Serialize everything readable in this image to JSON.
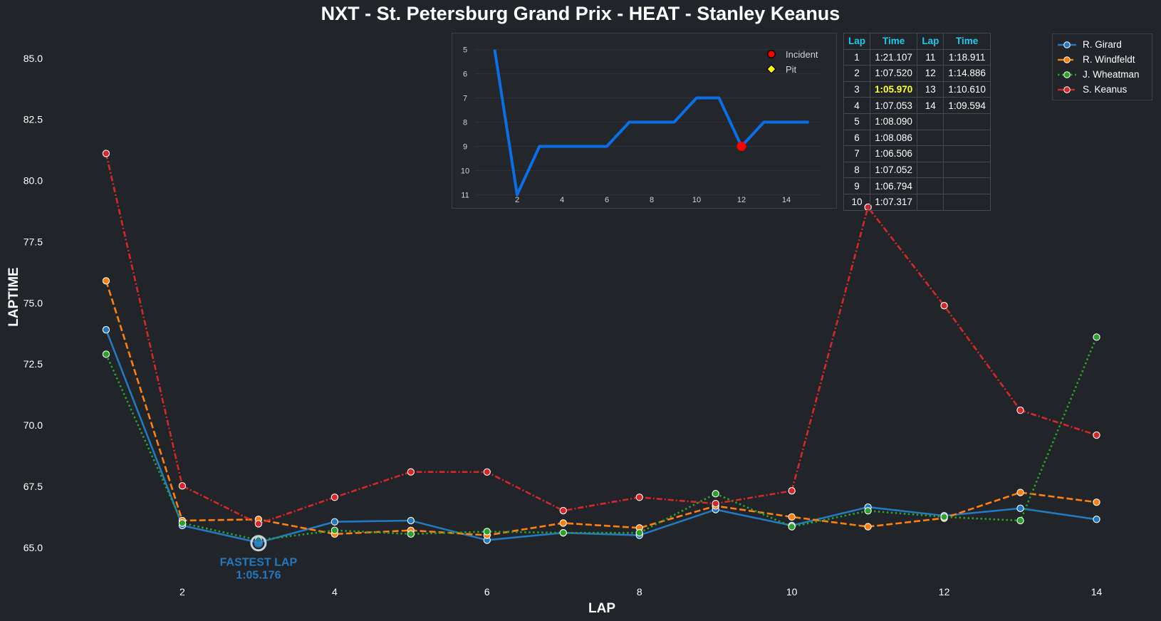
{
  "chart_data": [
    {
      "type": "line",
      "title": "NXT - St. Petersburg Grand Prix - HEAT - Stanley Keanus",
      "xlabel": "LAP",
      "ylabel": "LAPTIME",
      "xlim": [
        0,
        14.5
      ],
      "ylim": [
        63.8,
        86.1
      ],
      "xticks": [
        2,
        4,
        6,
        8,
        10,
        12,
        14
      ],
      "yticks": [
        65.0,
        67.5,
        70.0,
        72.5,
        75.0,
        77.5,
        80.0,
        82.5,
        85.0
      ],
      "legend_position": "top-right",
      "grid": false,
      "series": [
        {
          "name": "R. Girard",
          "color": "#2478c0",
          "dash": "solid",
          "x": [
            1,
            2,
            3,
            4,
            5,
            6,
            7,
            8,
            9,
            10,
            11,
            12,
            13,
            14
          ],
          "y": [
            73.9,
            65.9,
            65.2,
            66.05,
            66.1,
            65.3,
            65.6,
            65.5,
            66.55,
            65.9,
            66.65,
            66.3,
            66.6,
            66.15
          ]
        },
        {
          "name": "R. Windfeldt",
          "color": "#ff7f0e",
          "dash": "dashed",
          "x": [
            1,
            2,
            3,
            4,
            5,
            6,
            7,
            8,
            9,
            10,
            11,
            12,
            13,
            14
          ],
          "y": [
            75.9,
            66.1,
            66.15,
            65.55,
            65.7,
            65.5,
            66.0,
            65.8,
            66.7,
            66.25,
            65.85,
            66.2,
            67.25,
            66.85
          ]
        },
        {
          "name": "J. Wheatman",
          "color": "#2ca02c",
          "dash": "dotted",
          "x": [
            1,
            2,
            3,
            4,
            5,
            6,
            7,
            8,
            9,
            10,
            11,
            12,
            13,
            14
          ],
          "y": [
            72.9,
            66.0,
            65.3,
            65.7,
            65.55,
            65.65,
            65.6,
            65.6,
            67.2,
            65.85,
            66.5,
            66.25,
            66.1,
            73.6
          ]
        },
        {
          "name": "S. Keanus",
          "color": "#d62728",
          "dash": "dashdot",
          "x": [
            1,
            2,
            3,
            4,
            5,
            6,
            7,
            8,
            9,
            10,
            11,
            12,
            13,
            14
          ],
          "y": [
            81.107,
            67.52,
            65.97,
            67.053,
            68.09,
            68.086,
            66.506,
            67.052,
            66.794,
            67.317,
            78.911,
            74.886,
            70.61,
            69.594
          ]
        }
      ],
      "annotations": [
        {
          "text_line1": "FASTEST LAP",
          "text_line2": "1:05.176",
          "x": 3,
          "y": 65.176,
          "color": "#2478c0"
        }
      ]
    },
    {
      "type": "line",
      "title": "",
      "xlabel": "",
      "ylabel": "",
      "y_inverted": true,
      "xlim": [
        0,
        16
      ],
      "ylim": [
        4.6,
        11.4
      ],
      "xticks": [
        2,
        4,
        6,
        8,
        10,
        12,
        14
      ],
      "yticks": [
        5,
        6,
        7,
        8,
        9,
        10,
        11
      ],
      "color": "#0a6ee6",
      "x": [
        1,
        2,
        3,
        4,
        5,
        6,
        7,
        8,
        9,
        10,
        11,
        12,
        13,
        14,
        15
      ],
      "y": [
        5,
        11,
        9,
        9,
        9,
        9,
        8,
        8,
        8,
        7,
        7,
        9,
        8,
        8,
        8
      ],
      "markers": [
        {
          "x": 12,
          "y": 9,
          "kind": "Incident"
        }
      ],
      "legend": [
        {
          "label": "Incident",
          "marker": "circle",
          "color": "#ff0000"
        },
        {
          "label": "Pit",
          "marker": "diamond",
          "color": "#ffff00"
        }
      ]
    }
  ],
  "lap_table": {
    "headers": [
      "Lap",
      "Time",
      "Lap",
      "Time"
    ],
    "rows": [
      [
        "1",
        "1:21.107",
        "11",
        "1:18.911"
      ],
      [
        "2",
        "1:07.520",
        "12",
        "1:14.886"
      ],
      [
        "3",
        "1:05.970",
        "13",
        "1:10.610"
      ],
      [
        "4",
        "1:07.053",
        "14",
        "1:09.594"
      ],
      [
        "5",
        "1:08.090",
        "",
        ""
      ],
      [
        "6",
        "1:08.086",
        "",
        ""
      ],
      [
        "7",
        "1:06.506",
        "",
        ""
      ],
      [
        "8",
        "1:07.052",
        "",
        ""
      ],
      [
        "9",
        "1:06.794",
        "",
        ""
      ],
      [
        "10",
        "1:07.317",
        "",
        ""
      ]
    ],
    "fastest_row": 2,
    "fastest_color": "#ffff2e"
  }
}
